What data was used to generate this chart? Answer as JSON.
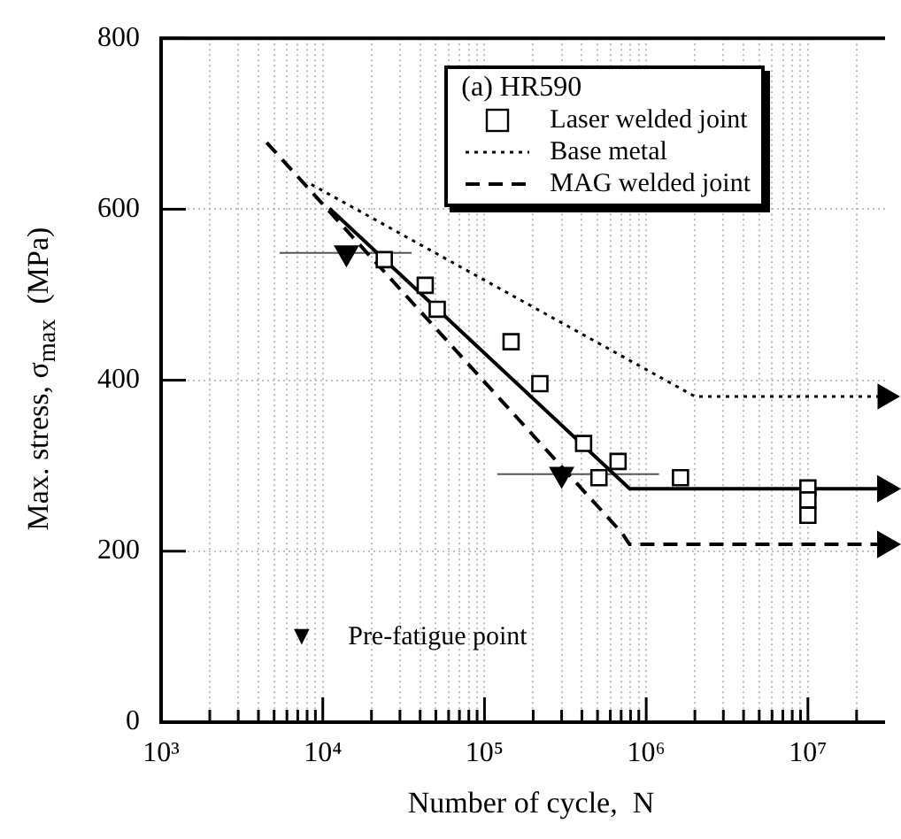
{
  "chart_data": {
    "type": "scatter",
    "xlabel": "Number of cycle,  N",
    "ylabel": "Max. stress, σ$_{max}$  (MPa)",
    "legend_title": "(a) HR590",
    "annotations": [
      "▼     Pre-fatigue point"
    ],
    "log": "x",
    "grid": true,
    "legend": "top right",
    "xlim": [
      1000,
      30000000
    ],
    "ylim": [
      0,
      800
    ],
    "xticks": [
      {
        "value": 1000,
        "label": "10³"
      },
      {
        "value": 2000,
        "label": null
      },
      {
        "value": 3000,
        "label": null
      },
      {
        "value": 4000,
        "label": null
      },
      {
        "value": 5000,
        "label": null
      },
      {
        "value": 6000,
        "label": null
      },
      {
        "value": 7000,
        "label": null
      },
      {
        "value": 8000,
        "label": null
      },
      {
        "value": 9000,
        "label": null
      },
      {
        "value": 10000,
        "label": "10⁴"
      },
      {
        "value": 20000,
        "label": null
      },
      {
        "value": 30000,
        "label": null
      },
      {
        "value": 40000,
        "label": null
      },
      {
        "value": 50000,
        "label": null
      },
      {
        "value": 60000,
        "label": null
      },
      {
        "value": 70000,
        "label": null
      },
      {
        "value": 80000,
        "label": null
      },
      {
        "value": 90000,
        "label": null
      },
      {
        "value": 100000,
        "label": "10⁵"
      },
      {
        "value": 200000,
        "label": null
      },
      {
        "value": 300000,
        "label": null
      },
      {
        "value": 400000,
        "label": null
      },
      {
        "value": 500000,
        "label": null
      },
      {
        "value": 600000,
        "label": null
      },
      {
        "value": 700000,
        "label": null
      },
      {
        "value": 800000,
        "label": null
      },
      {
        "value": 900000,
        "label": null
      },
      {
        "value": 1000000,
        "label": "10⁶"
      },
      {
        "value": 2000000,
        "label": null
      },
      {
        "value": 3000000,
        "label": null
      },
      {
        "value": 4000000,
        "label": null
      },
      {
        "value": 5000000,
        "label": null
      },
      {
        "value": 6000000,
        "label": null
      },
      {
        "value": 7000000,
        "label": null
      },
      {
        "value": 8000000,
        "label": null
      },
      {
        "value": 9000000,
        "label": null
      },
      {
        "value": 10000000,
        "label": "10⁷"
      },
      {
        "value": 20000000,
        "label": null
      }
    ],
    "yticks": [
      0,
      200,
      400,
      600,
      800
    ],
    "series": [
      {
        "type": "scatter",
        "name": "Laser welded joint",
        "color": "#000000",
        "marker": "square",
        "x": [
          24000,
          43000,
          51000,
          146000,
          220000,
          410000,
          510000,
          670000,
          1630000,
          10000000,
          10000000,
          10000000
        ],
        "values": [
          541,
          511,
          483,
          445,
          396,
          326,
          286,
          305,
          286,
          274,
          260,
          242
        ]
      },
      {
        "type": "line",
        "name": "Base metal",
        "color": "#000000",
        "line_style": "dotted",
        "marker": "none",
        "x": [
          8500,
          2000000,
          30000000
        ],
        "values": [
          629,
          381,
          381
        ]
      },
      {
        "type": "line",
        "name": "MAG welded joint",
        "color": "#000000",
        "line_style": "dashed",
        "marker": "none",
        "x": [
          4500,
          710000,
          790000,
          30000000
        ],
        "values": [
          678,
          221,
          208,
          208
        ]
      },
      {
        "type": "line",
        "color": "#000000",
        "line_style": "solid",
        "marker": "none",
        "x": [
          11000,
          790000,
          30000000
        ],
        "values": [
          601,
          273,
          273
        ]
      },
      {
        "type": "scatter",
        "color": "#000000",
        "marker": "triangle",
        "x": [
          14000,
          300000
        ],
        "values": [
          549,
          290
        ],
        "xerrors": [
          [
            5400,
            35400
          ],
          [
            120000,
            1200000
          ]
        ]
      }
    ]
  }
}
